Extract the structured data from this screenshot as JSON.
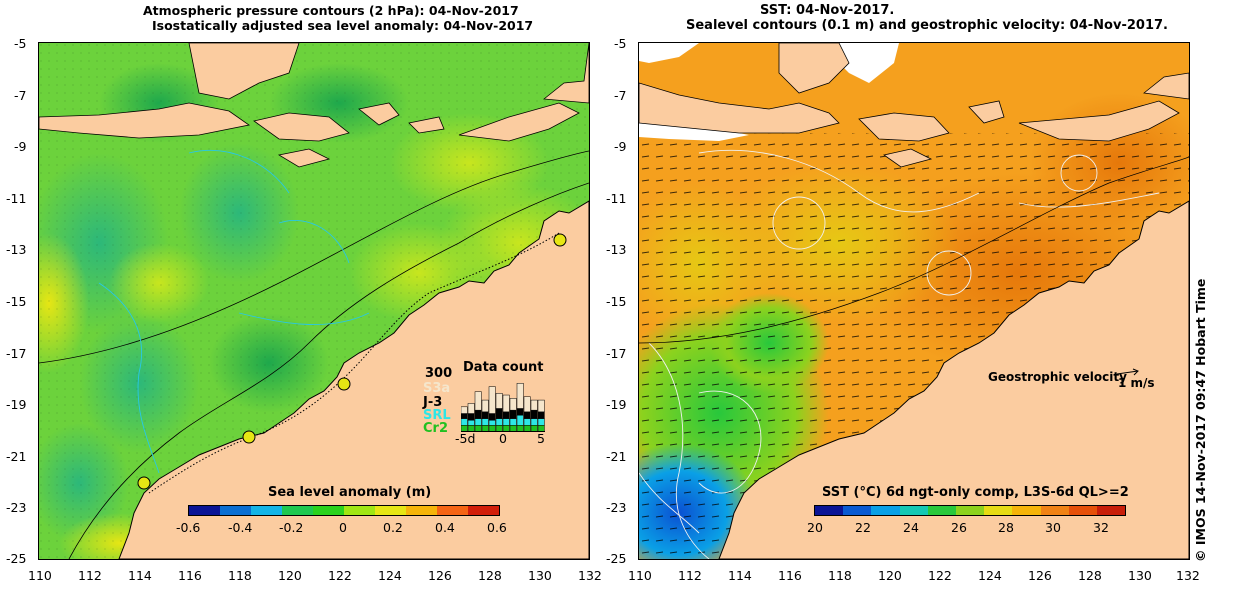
{
  "left_panel": {
    "title_line1": "Atmospheric pressure contours (2 hPa): 04-Nov-2017",
    "title_line2": "Isostatically adjusted sea level anomaly: 04-Nov-2017",
    "colorbar_label": "Sea level anomaly (m)",
    "colorbar_ticks": [
      "-0.6",
      "-0.4",
      "-0.2",
      "0",
      "0.2",
      "0.4",
      "0.6"
    ],
    "colorbar_colors": [
      "#0a1496",
      "#0a6ed2",
      "#14b4e6",
      "#1ec850",
      "#2ad21e",
      "#a0e614",
      "#e6e614",
      "#f5b40a",
      "#f56414",
      "#d21e0a"
    ],
    "data_count": {
      "title": "Data count",
      "max_label": "300",
      "series": [
        {
          "name": "S3a",
          "color": "#f5e6cc"
        },
        {
          "name": "J-3",
          "color": "#000000"
        },
        {
          "name": "SRL",
          "color": "#2ee6e6"
        },
        {
          "name": "Cr2",
          "color": "#20c020"
        }
      ],
      "x_ticks": [
        "-5d",
        "0",
        "5"
      ],
      "stacks": [
        [
          40,
          30,
          40,
          40
        ],
        [
          60,
          40,
          30,
          40
        ],
        [
          110,
          50,
          40,
          40
        ],
        [
          70,
          40,
          40,
          40
        ],
        [
          160,
          40,
          30,
          40
        ],
        [
          90,
          60,
          40,
          40
        ],
        [
          100,
          40,
          40,
          40
        ],
        [
          70,
          50,
          40,
          40
        ],
        [
          150,
          40,
          60,
          40
        ],
        [
          90,
          40,
          40,
          40
        ],
        [
          60,
          50,
          40,
          40
        ],
        [
          70,
          40,
          40,
          40
        ]
      ]
    }
  },
  "right_panel": {
    "title_line1": "SST: 04-Nov-2017.",
    "title_line2": "Sealevel contours (0.1 m) and geostrophic velocity: 04-Nov-2017.",
    "colorbar_label": "SST (°C) 6d ngt-only comp, L3S-6d QL>=2",
    "colorbar_ticks": [
      "20",
      "22",
      "24",
      "26",
      "28",
      "30",
      "32"
    ],
    "colorbar_colors": [
      "#0a1496",
      "#0a5ad2",
      "#0aa0e6",
      "#14c8b4",
      "#28c83c",
      "#8cd21e",
      "#e6dc14",
      "#f5b40a",
      "#f08214",
      "#e6500a",
      "#c81e0a"
    ],
    "velocity_label": "Geostrophic velocity",
    "velocity_scale": "1 m/s",
    "side_text": "© IMOS 14-Nov-2017 09:47 Hobart Time"
  },
  "axes": {
    "x_ticks": [
      "110",
      "112",
      "114",
      "116",
      "118",
      "120",
      "122",
      "124",
      "126",
      "128",
      "130",
      "132"
    ],
    "y_ticks": [
      "-5",
      "-7",
      "-9",
      "-11",
      "-13",
      "-15",
      "-17",
      "-19",
      "-21",
      "-23",
      "-25"
    ]
  },
  "colors": {
    "land": "#fbcca0",
    "coastline": "#000000",
    "sla_background": "#6cd23c",
    "sst_background": "#f5a01e"
  }
}
